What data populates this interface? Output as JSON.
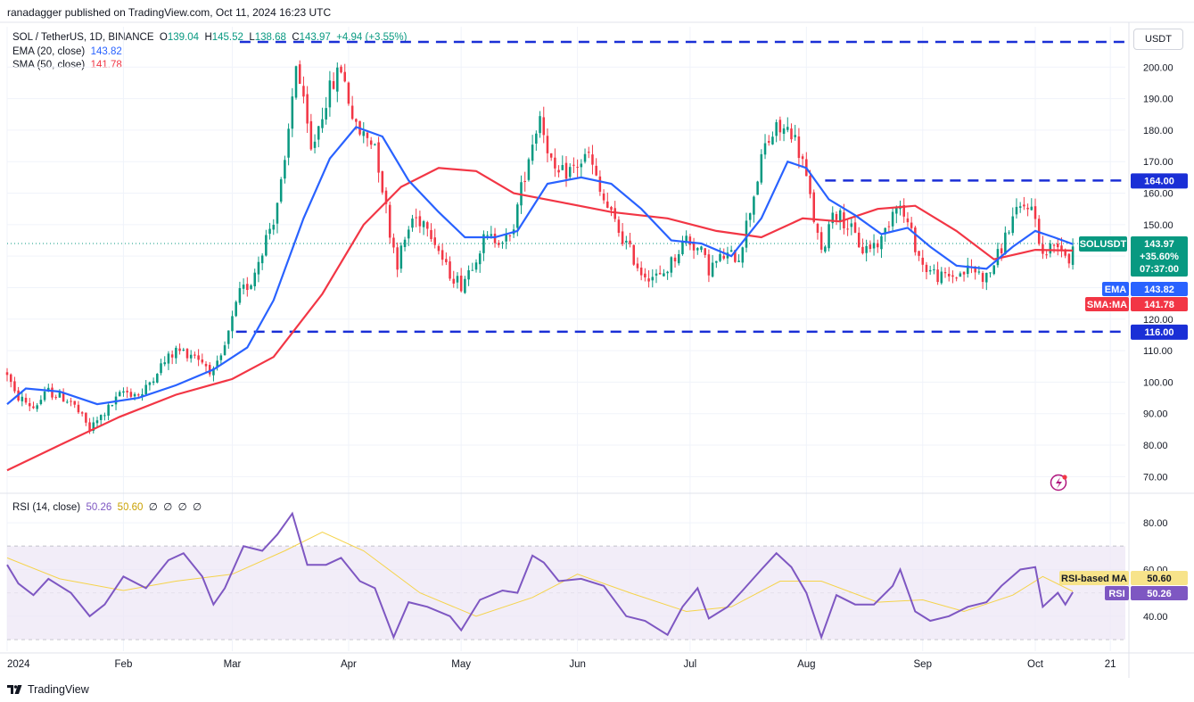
{
  "header": {
    "publisher": "ranadagger published on TradingView.com, Oct 11, 2024 16:23 UTC"
  },
  "symbol": {
    "name": "SOL / TetherUS, 1D, BINANCE",
    "open_label": "O",
    "open": "139.04",
    "high_label": "H",
    "high": "145.52",
    "low_label": "L",
    "low": "138.68",
    "close_label": "C",
    "close": "143.97",
    "change": "+4.94 (+3.55%)"
  },
  "indicators": {
    "ema": {
      "label": "EMA (20, close)",
      "value": "143.82"
    },
    "sma": {
      "label": "SMA (50, close)",
      "value": "141.78"
    },
    "rsi": {
      "label": "RSI (14, close)",
      "value": "50.26",
      "ma_value": "50.60",
      "extra": [
        "∅",
        "∅",
        "∅",
        "∅"
      ]
    }
  },
  "currency_button": "USDT",
  "price_tags": {
    "symbol": "SOLUSDT",
    "price": "143.97",
    "change": "+35.60%",
    "countdown": "07:37:00",
    "ema_label": "EMA",
    "ema_value": "143.82",
    "sma_label": "SMA:MA",
    "sma_value": "141.78",
    "level_top": "164.00",
    "level_bottom": "116.00",
    "rsi_ma_label": "RSI-based MA",
    "rsi_ma_value": "50.60",
    "rsi_label": "RSI",
    "rsi_value": "50.26"
  },
  "colors": {
    "up": "#089981",
    "down": "#f23645",
    "ema": "#2962ff",
    "sma": "#f23645",
    "rsi": "#7e57c2",
    "rsi_ma": "#f5d34a",
    "level": "#1a2fd6",
    "rsi_band": "#ede7f6"
  },
  "footer": {
    "brand": "TradingView"
  },
  "chart_data": {
    "type": "candlestick",
    "title": "SOL / TetherUS, 1D, BINANCE",
    "y_axis": {
      "min": 65,
      "max": 210,
      "ticks": [
        70,
        80,
        90,
        100,
        110,
        120,
        130,
        140,
        150,
        160,
        170,
        180,
        190,
        200
      ]
    },
    "y_tick_labels": [
      "70.00",
      "80.00",
      "90.00",
      "100.00",
      "110.00",
      "120.00",
      "130.00",
      "140.00",
      "150.00",
      "160.00",
      "170.00",
      "180.00",
      "190.00",
      "200.00"
    ],
    "x_axis": {
      "start": "2024-01-01",
      "end": "2024-10-25"
    },
    "x_tick_labels": [
      {
        "label": "2024",
        "date": "2024-01-01"
      },
      {
        "label": "Feb",
        "date": "2024-02-01"
      },
      {
        "label": "Mar",
        "date": "2024-03-01"
      },
      {
        "label": "Apr",
        "date": "2024-04-01"
      },
      {
        "label": "May",
        "date": "2024-05-01"
      },
      {
        "label": "Jun",
        "date": "2024-06-01"
      },
      {
        "label": "Jul",
        "date": "2024-07-01"
      },
      {
        "label": "Aug",
        "date": "2024-08-01"
      },
      {
        "label": "Sep",
        "date": "2024-09-01"
      },
      {
        "label": "Oct",
        "date": "2024-10-01"
      },
      {
        "label": "21",
        "date": "2024-10-21"
      }
    ],
    "price_path": [
      [
        "2024-01-01",
        103
      ],
      [
        "2024-01-03",
        96
      ],
      [
        "2024-01-08",
        92
      ],
      [
        "2024-01-12",
        97
      ],
      [
        "2024-01-18",
        94
      ],
      [
        "2024-01-23",
        85
      ],
      [
        "2024-01-26",
        89
      ],
      [
        "2024-02-01",
        97
      ],
      [
        "2024-02-06",
        96
      ],
      [
        "2024-02-10",
        104
      ],
      [
        "2024-02-15",
        110
      ],
      [
        "2024-02-20",
        109
      ],
      [
        "2024-02-25",
        103
      ],
      [
        "2024-02-27",
        107
      ],
      [
        "2024-03-03",
        128
      ],
      [
        "2024-03-06",
        132
      ],
      [
        "2024-03-10",
        146
      ],
      [
        "2024-03-12",
        152
      ],
      [
        "2024-03-15",
        168
      ],
      [
        "2024-03-18",
        202
      ],
      [
        "2024-03-22",
        173
      ],
      [
        "2024-03-26",
        190
      ],
      [
        "2024-03-30",
        200
      ],
      [
        "2024-04-03",
        180
      ],
      [
        "2024-04-08",
        176
      ],
      [
        "2024-04-12",
        148
      ],
      [
        "2024-04-14",
        138
      ],
      [
        "2024-04-18",
        152
      ],
      [
        "2024-04-22",
        151
      ],
      [
        "2024-04-27",
        136
      ],
      [
        "2024-05-01",
        131
      ],
      [
        "2024-05-07",
        145
      ],
      [
        "2024-05-11",
        146
      ],
      [
        "2024-05-14",
        145
      ],
      [
        "2024-05-19",
        172
      ],
      [
        "2024-05-22",
        185
      ],
      [
        "2024-05-26",
        165
      ],
      [
        "2024-05-31",
        168
      ],
      [
        "2024-06-04",
        172
      ],
      [
        "2024-06-07",
        160
      ],
      [
        "2024-06-12",
        148
      ],
      [
        "2024-06-18",
        135
      ],
      [
        "2024-06-23",
        133
      ],
      [
        "2024-06-26",
        138
      ],
      [
        "2024-06-30",
        146
      ],
      [
        "2024-07-04",
        141
      ],
      [
        "2024-07-06",
        136
      ],
      [
        "2024-07-10",
        140
      ],
      [
        "2024-07-14",
        140
      ],
      [
        "2024-07-18",
        160
      ],
      [
        "2024-07-21",
        175
      ],
      [
        "2024-07-24",
        180
      ],
      [
        "2024-07-28",
        180
      ],
      [
        "2024-07-31",
        170
      ],
      [
        "2024-08-05",
        140
      ],
      [
        "2024-08-08",
        155
      ],
      [
        "2024-08-12",
        150
      ],
      [
        "2024-08-16",
        142
      ],
      [
        "2024-08-21",
        145
      ],
      [
        "2024-08-25",
        158
      ],
      [
        "2024-08-28",
        150
      ],
      [
        "2024-09-01",
        137
      ],
      [
        "2024-09-06",
        133
      ],
      [
        "2024-09-10",
        134
      ],
      [
        "2024-09-14",
        136
      ],
      [
        "2024-09-18",
        133
      ],
      [
        "2024-09-21",
        140
      ],
      [
        "2024-09-25",
        152
      ],
      [
        "2024-09-29",
        157
      ],
      [
        "2024-10-01",
        152
      ],
      [
        "2024-10-03",
        140
      ],
      [
        "2024-10-07",
        145
      ],
      [
        "2024-10-10",
        139
      ],
      [
        "2024-10-11",
        144
      ]
    ],
    "ema_20": [
      [
        "2024-01-01",
        93
      ],
      [
        "2024-01-06",
        98
      ],
      [
        "2024-01-15",
        97
      ],
      [
        "2024-01-25",
        93
      ],
      [
        "2024-02-05",
        95
      ],
      [
        "2024-02-15",
        99
      ],
      [
        "2024-02-25",
        104
      ],
      [
        "2024-03-05",
        111
      ],
      [
        "2024-03-12",
        126
      ],
      [
        "2024-03-20",
        152
      ],
      [
        "2024-03-27",
        171
      ],
      [
        "2024-04-03",
        181
      ],
      [
        "2024-04-10",
        178
      ],
      [
        "2024-04-17",
        164
      ],
      [
        "2024-04-25",
        154
      ],
      [
        "2024-05-02",
        146
      ],
      [
        "2024-05-10",
        146
      ],
      [
        "2024-05-16",
        148
      ],
      [
        "2024-05-24",
        163
      ],
      [
        "2024-06-02",
        165
      ],
      [
        "2024-06-10",
        163
      ],
      [
        "2024-06-18",
        155
      ],
      [
        "2024-06-26",
        145
      ],
      [
        "2024-07-04",
        144
      ],
      [
        "2024-07-12",
        140
      ],
      [
        "2024-07-20",
        152
      ],
      [
        "2024-07-27",
        170
      ],
      [
        "2024-08-01",
        168
      ],
      [
        "2024-08-07",
        158
      ],
      [
        "2024-08-14",
        153
      ],
      [
        "2024-08-21",
        147
      ],
      [
        "2024-08-28",
        149
      ],
      [
        "2024-09-03",
        143
      ],
      [
        "2024-09-10",
        137
      ],
      [
        "2024-09-18",
        136
      ],
      [
        "2024-09-25",
        143
      ],
      [
        "2024-10-01",
        148
      ],
      [
        "2024-10-06",
        146
      ],
      [
        "2024-10-11",
        143.82
      ]
    ],
    "sma_50": [
      [
        "2024-01-01",
        72
      ],
      [
        "2024-01-15",
        80
      ],
      [
        "2024-01-31",
        89
      ],
      [
        "2024-02-15",
        96
      ],
      [
        "2024-03-01",
        101
      ],
      [
        "2024-03-12",
        108
      ],
      [
        "2024-03-25",
        128
      ],
      [
        "2024-04-05",
        150
      ],
      [
        "2024-04-15",
        162
      ],
      [
        "2024-04-25",
        168
      ],
      [
        "2024-05-05",
        167
      ],
      [
        "2024-05-15",
        160
      ],
      [
        "2024-05-28",
        157
      ],
      [
        "2024-06-10",
        154
      ],
      [
        "2024-06-25",
        152
      ],
      [
        "2024-07-08",
        148
      ],
      [
        "2024-07-20",
        146
      ],
      [
        "2024-07-31",
        152
      ],
      [
        "2024-08-10",
        151
      ],
      [
        "2024-08-20",
        155
      ],
      [
        "2024-08-30",
        156
      ],
      [
        "2024-09-10",
        148
      ],
      [
        "2024-09-20",
        139
      ],
      [
        "2024-10-01",
        142
      ],
      [
        "2024-10-11",
        141.78
      ]
    ],
    "levels": [
      {
        "price": 208,
        "label": ""
      },
      {
        "price": 164,
        "label": "164.00"
      },
      {
        "price": 116,
        "label": "116.00"
      }
    ],
    "rsi": {
      "y_ticks": [
        40,
        60,
        80
      ],
      "y_tick_labels": [
        "40.00",
        "60.00",
        "80.00"
      ],
      "band": [
        30,
        70
      ],
      "ylim": [
        25,
        90
      ],
      "values": [
        [
          "2024-01-01",
          62
        ],
        [
          "2024-01-04",
          54
        ],
        [
          "2024-01-08",
          49
        ],
        [
          "2024-01-12",
          56
        ],
        [
          "2024-01-18",
          50
        ],
        [
          "2024-01-23",
          40
        ],
        [
          "2024-01-27",
          45
        ],
        [
          "2024-02-01",
          57
        ],
        [
          "2024-02-07",
          52
        ],
        [
          "2024-02-13",
          64
        ],
        [
          "2024-02-17",
          67
        ],
        [
          "2024-02-22",
          57
        ],
        [
          "2024-02-25",
          45
        ],
        [
          "2024-02-28",
          52
        ],
        [
          "2024-03-04",
          70
        ],
        [
          "2024-03-09",
          68
        ],
        [
          "2024-03-13",
          75
        ],
        [
          "2024-03-17",
          84
        ],
        [
          "2024-03-21",
          62
        ],
        [
          "2024-03-26",
          62
        ],
        [
          "2024-03-30",
          65
        ],
        [
          "2024-04-04",
          55
        ],
        [
          "2024-04-08",
          52
        ],
        [
          "2024-04-13",
          31
        ],
        [
          "2024-04-17",
          46
        ],
        [
          "2024-04-22",
          44
        ],
        [
          "2024-04-28",
          40
        ],
        [
          "2024-05-01",
          34
        ],
        [
          "2024-05-06",
          47
        ],
        [
          "2024-05-12",
          51
        ],
        [
          "2024-05-16",
          50
        ],
        [
          "2024-05-20",
          66
        ],
        [
          "2024-05-23",
          63
        ],
        [
          "2024-05-27",
          55
        ],
        [
          "2024-06-02",
          56
        ],
        [
          "2024-06-08",
          53
        ],
        [
          "2024-06-14",
          40
        ],
        [
          "2024-06-19",
          38
        ],
        [
          "2024-06-25",
          32
        ],
        [
          "2024-06-29",
          44
        ],
        [
          "2024-07-03",
          52
        ],
        [
          "2024-07-06",
          39
        ],
        [
          "2024-07-11",
          44
        ],
        [
          "2024-07-15",
          51
        ],
        [
          "2024-07-20",
          60
        ],
        [
          "2024-07-24",
          67
        ],
        [
          "2024-07-28",
          61
        ],
        [
          "2024-08-01",
          50
        ],
        [
          "2024-08-05",
          31
        ],
        [
          "2024-08-09",
          49
        ],
        [
          "2024-08-14",
          45
        ],
        [
          "2024-08-19",
          45
        ],
        [
          "2024-08-24",
          53
        ],
        [
          "2024-08-26",
          60
        ],
        [
          "2024-08-30",
          42
        ],
        [
          "2024-09-03",
          38
        ],
        [
          "2024-09-08",
          40
        ],
        [
          "2024-09-13",
          44
        ],
        [
          "2024-09-18",
          46
        ],
        [
          "2024-09-22",
          53
        ],
        [
          "2024-09-27",
          60
        ],
        [
          "2024-10-01",
          61
        ],
        [
          "2024-10-03",
          44
        ],
        [
          "2024-10-07",
          50
        ],
        [
          "2024-10-09",
          45
        ],
        [
          "2024-10-11",
          50.26
        ]
      ],
      "ma": [
        [
          "2024-01-01",
          65
        ],
        [
          "2024-01-15",
          56
        ],
        [
          "2024-02-01",
          51
        ],
        [
          "2024-02-15",
          55
        ],
        [
          "2024-03-01",
          58
        ],
        [
          "2024-03-15",
          68
        ],
        [
          "2024-03-25",
          76
        ],
        [
          "2024-04-05",
          68
        ],
        [
          "2024-04-20",
          50
        ],
        [
          "2024-05-05",
          40
        ],
        [
          "2024-05-20",
          48
        ],
        [
          "2024-06-01",
          58
        ],
        [
          "2024-06-15",
          50
        ],
        [
          "2024-06-30",
          42
        ],
        [
          "2024-07-12",
          44
        ],
        [
          "2024-07-25",
          55
        ],
        [
          "2024-08-05",
          55
        ],
        [
          "2024-08-20",
          46
        ],
        [
          "2024-09-01",
          47
        ],
        [
          "2024-09-12",
          42
        ],
        [
          "2024-09-25",
          49
        ],
        [
          "2024-10-03",
          57
        ],
        [
          "2024-10-11",
          50.6
        ]
      ]
    }
  }
}
